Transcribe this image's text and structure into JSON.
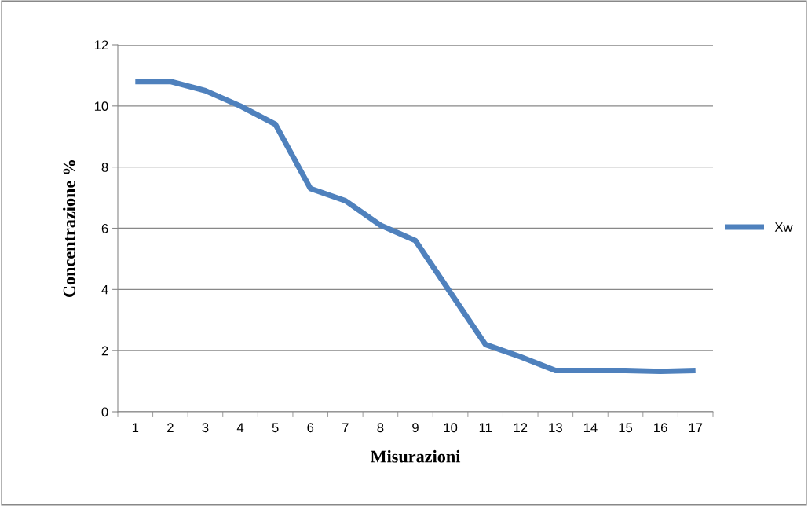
{
  "chart_data": {
    "type": "line",
    "xlabel": "Misurazioni",
    "ylabel": "Concentrazione %",
    "categories": [
      "1",
      "2",
      "3",
      "4",
      "5",
      "6",
      "7",
      "8",
      "9",
      "10",
      "11",
      "12",
      "13",
      "14",
      "15",
      "16",
      "17"
    ],
    "series": [
      {
        "name": "Xw",
        "color": "#4f81bd",
        "values": [
          10.8,
          10.8,
          10.5,
          10.0,
          9.4,
          7.3,
          6.9,
          6.1,
          5.6,
          3.9,
          2.2,
          1.8,
          1.35,
          1.35,
          1.35,
          1.32,
          1.35
        ]
      }
    ],
    "ylim": [
      0,
      12
    ],
    "yticks": [
      0,
      2,
      4,
      6,
      8,
      10,
      12
    ],
    "grid": "y",
    "legend": "right",
    "marker": "none",
    "line_style": "solid"
  }
}
